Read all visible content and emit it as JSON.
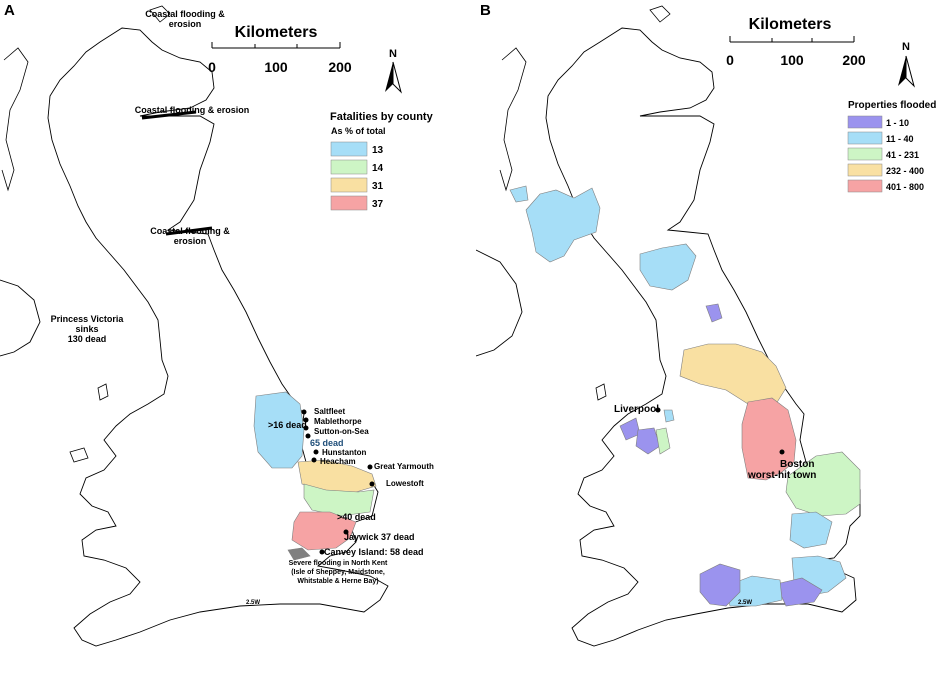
{
  "panels": [
    {
      "letter": "A",
      "scale": {
        "title": "Kilometers",
        "ticks": [
          "0",
          "100",
          "200"
        ]
      },
      "north": "N",
      "legend": {
        "title": "Fatalities by county",
        "subtitle": "As % of total",
        "items": [
          {
            "label": "13",
            "color": "#a6def7"
          },
          {
            "label": "14",
            "color": "#cdf5c5"
          },
          {
            "label": "31",
            "color": "#f9e0a2"
          },
          {
            "label": "37",
            "color": "#f6a3a4"
          }
        ]
      },
      "annotations": {
        "coast_north": [
          "Coastal flooding &",
          "erosion"
        ],
        "coast_moray": "Coastal flooding & erosion",
        "coast_fife": [
          "Coastal flooding &",
          "erosion"
        ],
        "princess": [
          "Princess Victoria",
          "sinks",
          "130 dead"
        ],
        "lincs_dead": ">16 dead",
        "saltfleet": "Saltfleet",
        "mablethorpe": "Mablethorpe",
        "sutton": "Sutton-on-Sea",
        "norfolk_dead": "65 dead",
        "hunstanton": "Hunstanton",
        "heacham": "Heacham",
        "great_yarmouth": "Great Yarmouth",
        "lowestoft": "Lowestoft",
        "suffolk_dead": ">40 dead",
        "jaywick": "Jaywick 37 dead",
        "canvey": "Canvey Island: 58 dead",
        "kent": [
          "Severe flooding in North Kent",
          "(Isle of Sheppey, Maidstone,",
          "Whitstable & Herne Bay)"
        ],
        "channel": "2.5W"
      }
    },
    {
      "letter": "B",
      "scale": {
        "title": "Kilometers",
        "ticks": [
          "0",
          "100",
          "200"
        ]
      },
      "north": "N",
      "legend": {
        "title": "Properties flooded",
        "items": [
          {
            "label": "1 - 10",
            "color": "#9b93ee"
          },
          {
            "label": "11 - 40",
            "color": "#a6def7"
          },
          {
            "label": "41 - 231",
            "color": "#cdf5c5"
          },
          {
            "label": "232 - 400",
            "color": "#f9e0a2"
          },
          {
            "label": "401 - 800",
            "color": "#f6a3a4"
          }
        ]
      },
      "annotations": {
        "liverpool": "Liverpool",
        "boston": "Boston",
        "boston_note": "worst-hit town",
        "channel": "2.5W"
      }
    }
  ]
}
